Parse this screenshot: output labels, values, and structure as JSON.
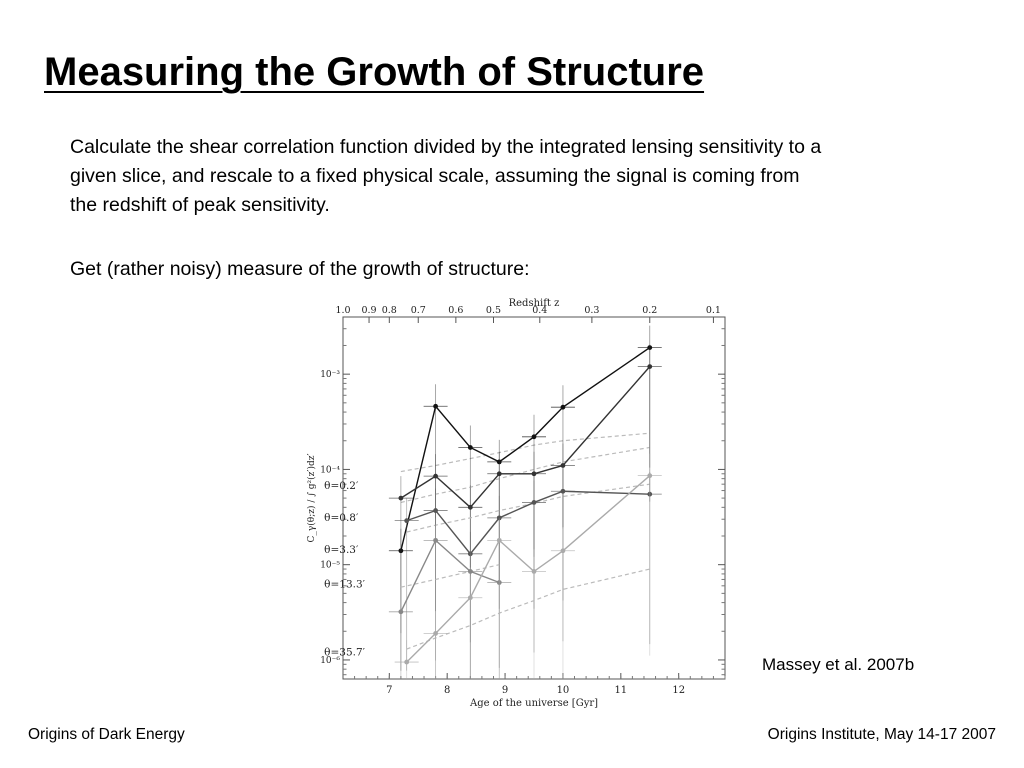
{
  "slide": {
    "title": "Measuring the Growth of Structure",
    "paragraph1": "Calculate the shear correlation function divided by the integrated lensing sensitivity to a given slice, and rescale to a fixed physical scale, assuming the signal is coming from the redshift of peak sensitivity.",
    "paragraph2": "Get (rather noisy) measure of the growth of structure:",
    "credit": "Massey et al. 2007b",
    "footer_left": "Origins of Dark Energy",
    "footer_right": "Origins Institute, May 14-17 2007"
  },
  "chart_data": {
    "type": "line",
    "title": "",
    "xlabel": "Age of the universe [Gyr]",
    "ylabel": "C_γ(θ;z) / ∫ g²(z′)dz′",
    "x2label": "Redshift z",
    "xlim": [
      6.2,
      12.8
    ],
    "ylim_log10": [
      -6.2,
      -2.4
    ],
    "yscale": "log",
    "x_ticks": [
      "7",
      "8",
      "9",
      "10",
      "11",
      "12"
    ],
    "x2_ticks": [
      {
        "label": "1.0",
        "age": 6.2
      },
      {
        "label": "0.9",
        "age": 6.65
      },
      {
        "label": "0.8",
        "age": 7.0
      },
      {
        "label": "0.7",
        "age": 7.5
      },
      {
        "label": "0.6",
        "age": 8.15
      },
      {
        "label": "0.5",
        "age": 8.8
      },
      {
        "label": "0.4",
        "age": 9.6
      },
      {
        "label": "0.3",
        "age": 10.5
      },
      {
        "label": "0.2",
        "age": 11.5
      },
      {
        "label": "0.1",
        "age": 12.6
      }
    ],
    "y_ticks": [
      {
        "label": "10⁻³",
        "exp": -3
      },
      {
        "label": "10⁻⁴",
        "exp": -4
      },
      {
        "label": "10⁻⁵",
        "exp": -5
      },
      {
        "label": "10⁻⁶",
        "exp": -6
      }
    ],
    "annotations": [
      {
        "text": "θ=0.2′",
        "x": 6.6,
        "y": 6.7e-05,
        "color": "#111111"
      },
      {
        "text": "θ=0.8′",
        "x": 6.6,
        "y": 3.1e-05,
        "color": "#333333"
      },
      {
        "text": "θ=3.3′",
        "x": 6.6,
        "y": 1.42e-05,
        "color": "#555555"
      },
      {
        "text": "θ=13.3′",
        "x": 6.6,
        "y": 6.2e-06,
        "color": "#888888"
      },
      {
        "text": "θ=35.7′",
        "x": 6.6,
        "y": 1.2e-06,
        "color": "#aaaaaa"
      }
    ],
    "series": [
      {
        "name": "θ=0.2′",
        "color": "#111111",
        "x": [
          7.2,
          7.8,
          8.4,
          8.9,
          9.5,
          10.0,
          11.5
        ],
        "y": [
          1.4e-05,
          0.00046,
          0.00017,
          0.00012,
          0.00022,
          0.00045,
          0.0019
        ],
        "model": [
          9.5e-05,
          0.00011,
          0.00013,
          0.00015,
          0.00018,
          0.0002,
          0.00024
        ]
      },
      {
        "name": "θ=0.8′",
        "color": "#333333",
        "x": [
          7.2,
          7.8,
          8.4,
          8.9,
          9.5,
          10.0,
          11.5
        ],
        "y": [
          5e-05,
          8.5e-05,
          4e-05,
          9e-05,
          9e-05,
          0.00011,
          0.0012
        ],
        "model": [
          4.5e-05,
          5.5e-05,
          6.5e-05,
          8e-05,
          0.0001,
          0.00012,
          0.00017
        ]
      },
      {
        "name": "θ=3.3′",
        "color": "#555555",
        "x": [
          7.3,
          7.8,
          8.4,
          8.9,
          9.5,
          10.0,
          11.5
        ],
        "y": [
          2.9e-05,
          3.7e-05,
          1.3e-05,
          3.1e-05,
          4.5e-05,
          5.9e-05,
          5.5e-05
        ],
        "model": [
          2.2e-05,
          2.6e-05,
          3.1e-05,
          3.7e-05,
          4.4e-05,
          5.2e-05,
          7e-05
        ]
      },
      {
        "name": "θ=13.3′",
        "color": "#888888",
        "x": [
          7.2,
          7.8,
          8.4,
          8.9
        ],
        "y": [
          3.2e-06,
          1.8e-05,
          8.5e-06,
          6.5e-06
        ],
        "model": [
          5.8e-06,
          7e-06,
          8.5e-06,
          1e-05
        ]
      },
      {
        "name": "θ=35.7′",
        "color": "#aaaaaa",
        "x": [
          7.3,
          7.8,
          8.4,
          8.9,
          9.5,
          10.0,
          11.5
        ],
        "y": [
          9.5e-07,
          1.9e-06,
          4.5e-06,
          1.8e-05,
          8.5e-06,
          1.4e-05,
          8.6e-05
        ],
        "model": [
          1.3e-06,
          1.7e-06,
          2.3e-06,
          3.1e-06,
          4.2e-06,
          5.5e-06,
          9e-06
        ]
      }
    ],
    "grid": false
  }
}
